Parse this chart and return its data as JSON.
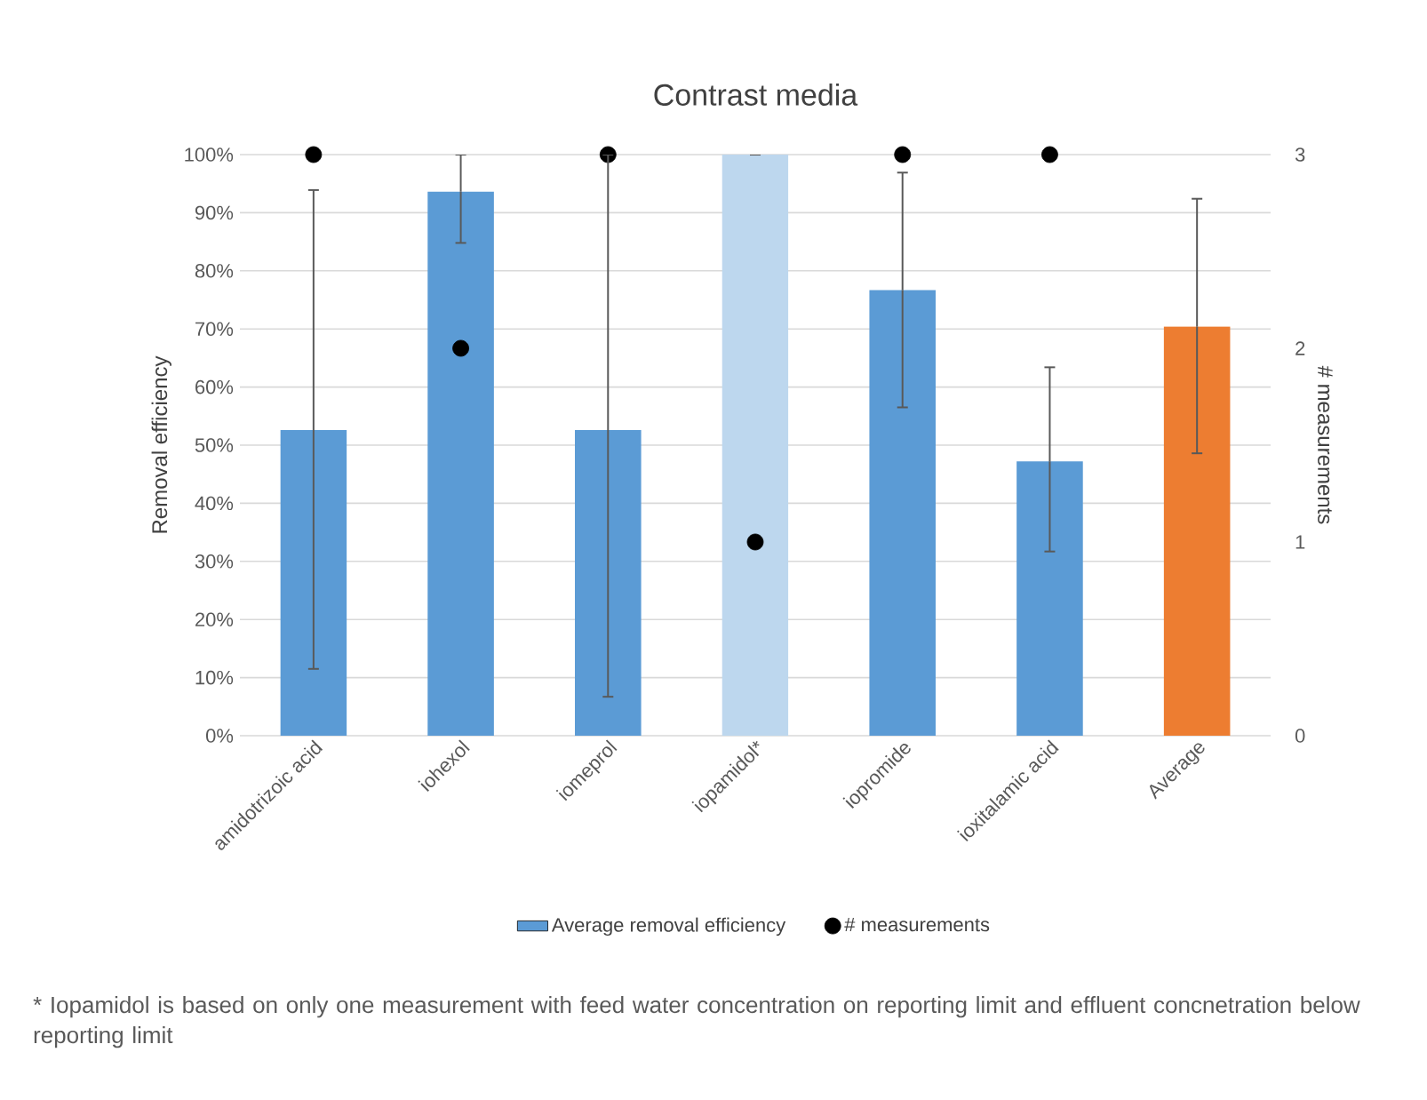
{
  "chart_data": {
    "type": "bar",
    "title": "Contrast media",
    "categories": [
      "amidotrizoic acid",
      "iohexol",
      "iomeprol",
      "iopamidol*",
      "iopromide",
      "ioxitalamic acid",
      "Average"
    ],
    "series": [
      {
        "name": "Average removal efficiency",
        "color": "#5b9bd5",
        "colors": [
          "#5b9bd5",
          "#5b9bd5",
          "#5b9bd5",
          "#bdd7ee",
          "#5b9bd5",
          "#5b9bd5",
          "#ed7d31"
        ],
        "values": [
          52.6,
          93.6,
          52.6,
          100,
          76.7,
          47.2,
          70.4
        ],
        "errors": [
          [
            11.5,
            93.9
          ],
          [
            84.8,
            100
          ],
          [
            6.7,
            100
          ],
          [
            100,
            100
          ],
          [
            56.5,
            96.9
          ],
          [
            31.7,
            63.4
          ],
          [
            48.6,
            92.4
          ]
        ]
      },
      {
        "name": "# measurements",
        "type": "scatter",
        "axis": "y2",
        "color": "#000000",
        "marker": "circle",
        "x": [
          "amidotrizoic acid",
          "iohexol",
          "iomeprol",
          "iopamidol*",
          "iopromide",
          "ioxitalamic acid",
          "Average"
        ],
        "values": [
          3,
          2,
          3,
          1,
          3,
          3,
          null
        ]
      }
    ],
    "ylabel": "Removal efficiency",
    "y2label": "# measurements",
    "ylim": [
      0,
      100
    ],
    "yticks": [
      {
        "value": 0,
        "label": "0%"
      },
      {
        "value": 10,
        "label": "10%"
      },
      {
        "value": 20,
        "label": "20%"
      },
      {
        "value": 30,
        "label": "30%"
      },
      {
        "value": 40,
        "label": "40%"
      },
      {
        "value": 50,
        "label": "50%"
      },
      {
        "value": 60,
        "label": "60%"
      },
      {
        "value": 70,
        "label": "70%"
      },
      {
        "value": 80,
        "label": "80%"
      },
      {
        "value": 90,
        "label": "90%"
      },
      {
        "value": 100,
        "label": "100%"
      }
    ],
    "y2lim": [
      0,
      3
    ],
    "y2ticks": [
      0,
      1,
      2,
      3
    ],
    "grid": "y",
    "legend": "bottom",
    "annotations": [
      "* Iopamidol is based on only one measurement with feed water concentration on reporting limit and effluent concnetration below reporting limit"
    ]
  }
}
